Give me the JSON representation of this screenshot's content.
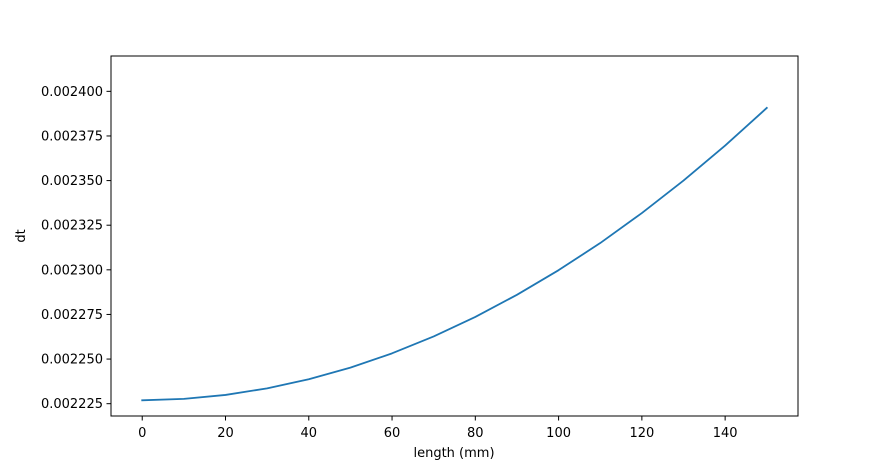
{
  "chart_data": {
    "type": "line",
    "title": "",
    "xlabel": "length (mm)",
    "ylabel": "dt",
    "xlim": [
      -7.5,
      157.5
    ],
    "ylim": [
      0.0022181,
      0.0024198
    ],
    "xticks": [
      0,
      20,
      40,
      60,
      80,
      100,
      120,
      140
    ],
    "xtick_labels": [
      "0",
      "20",
      "40",
      "60",
      "80",
      "100",
      "120",
      "140"
    ],
    "yticks": [
      0.002225,
      0.00225,
      0.002275,
      0.0023,
      0.002325,
      0.00235,
      0.002375,
      0.0024
    ],
    "ytick_labels": [
      "0.002225",
      "0.002250",
      "0.002275",
      "0.002300",
      "0.002325",
      "0.002350",
      "0.002375",
      "0.002400"
    ],
    "grid": false,
    "legend": "none",
    "series": [
      {
        "color": "#1f77b4",
        "x": [
          0,
          10,
          20,
          30,
          40,
          50,
          60,
          70,
          80,
          90,
          100,
          110,
          120,
          130,
          140,
          150
        ],
        "y": [
          0.0022269,
          0.0022277,
          0.0022299,
          0.0022336,
          0.0022387,
          0.0022452,
          0.0022532,
          0.0022627,
          0.0022736,
          0.002286,
          0.0022998,
          0.002315,
          0.0023318,
          0.00235,
          0.0023696,
          0.0023907
        ]
      }
    ]
  }
}
